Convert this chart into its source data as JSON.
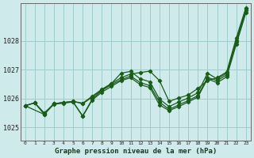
{
  "title": "Graphe pression niveau de la mer (hPa)",
  "background_color": "#ceeaea",
  "grid_color": "#a0cccc",
  "line_color": "#1a5c1a",
  "x_ticks": [
    0,
    1,
    2,
    3,
    4,
    5,
    6,
    7,
    8,
    9,
    10,
    11,
    12,
    13,
    14,
    15,
    16,
    17,
    18,
    19,
    20,
    21,
    22,
    23
  ],
  "y_ticks": [
    1025,
    1026,
    1027,
    1028
  ],
  "ylim": [
    1024.55,
    1029.3
  ],
  "xlim": [
    -0.5,
    23.5
  ],
  "line1_x": [
    0,
    1,
    2,
    3,
    4,
    5,
    6,
    7,
    8,
    9,
    10,
    11,
    12,
    13,
    14,
    15,
    16,
    17,
    18,
    19,
    20,
    21,
    22,
    23
  ],
  "line1_y": [
    1025.75,
    1025.85,
    1025.5,
    1025.82,
    1025.86,
    1025.9,
    1025.84,
    1026.08,
    1026.32,
    1026.52,
    1026.72,
    1026.85,
    1026.9,
    1026.95,
    1026.62,
    1025.9,
    1026.02,
    1026.12,
    1026.35,
    1026.62,
    1026.72,
    1026.92,
    1028.1,
    1029.15
  ],
  "line2_x": [
    0,
    1,
    2,
    3,
    4,
    5,
    6,
    7,
    8,
    9,
    10,
    11,
    12,
    13,
    14,
    15,
    16,
    17,
    18,
    19,
    20,
    21,
    22,
    23
  ],
  "line2_y": [
    1025.75,
    1025.85,
    1025.45,
    1025.82,
    1025.86,
    1025.9,
    1025.82,
    1026.05,
    1026.3,
    1026.52,
    1026.88,
    1026.94,
    1026.68,
    1026.58,
    1025.98,
    1025.72,
    1025.88,
    1026.02,
    1026.2,
    1026.88,
    1026.68,
    1026.88,
    1028.02,
    1029.1
  ],
  "line3_x": [
    0,
    2,
    3,
    4,
    5,
    6,
    7,
    8,
    9,
    10,
    11,
    12,
    13,
    14,
    15,
    16,
    17,
    18,
    19,
    20,
    21,
    22,
    23
  ],
  "line3_y": [
    1025.75,
    1025.45,
    1025.82,
    1025.86,
    1025.88,
    1025.4,
    1025.98,
    1026.28,
    1026.48,
    1026.65,
    1026.78,
    1026.55,
    1026.45,
    1025.88,
    1025.62,
    1025.78,
    1025.93,
    1026.1,
    1026.73,
    1026.62,
    1026.82,
    1027.95,
    1029.05
  ],
  "line4_x": [
    0,
    1,
    2,
    3,
    4,
    5,
    6,
    7,
    8,
    9,
    10,
    11,
    12,
    13,
    14,
    15,
    16,
    17,
    18,
    19,
    20,
    21,
    22,
    23
  ],
  "line4_y": [
    1025.75,
    1025.85,
    1025.48,
    1025.8,
    1025.84,
    1025.88,
    1025.38,
    1025.95,
    1026.22,
    1026.42,
    1026.62,
    1026.72,
    1026.48,
    1026.38,
    1025.78,
    1025.58,
    1025.72,
    1025.88,
    1026.05,
    1026.68,
    1026.55,
    1026.75,
    1027.88,
    1028.97
  ]
}
